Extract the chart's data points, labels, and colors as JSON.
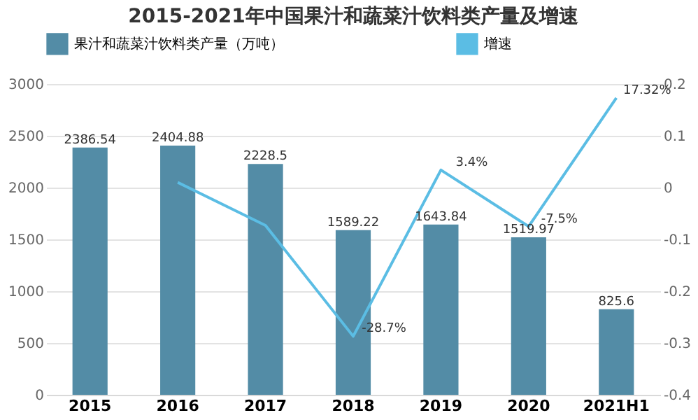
{
  "chart_data": {
    "type": "bar",
    "title": "2015-2021年中国果汁和蔬菜汁饮料类产量及增速",
    "categories": [
      "2015",
      "2016",
      "2017",
      "2018",
      "2019",
      "2020",
      "2021H1"
    ],
    "series": [
      {
        "name": "果汁和蔬菜汁饮料类产量（万吨）",
        "color": "#538ca6",
        "values": [
          2386.54,
          2404.88,
          2228.5,
          1589.22,
          1643.84,
          1519.97,
          825.6
        ],
        "value_labels": [
          "2386.54",
          "2404.88",
          "2228.5",
          "1589.22",
          "1643.84",
          "1519.97",
          "825.6"
        ]
      },
      {
        "name": "增速",
        "type": "line",
        "axis": "y2",
        "color": "#5bbde4",
        "values": [
          null,
          0.01,
          -0.073,
          -0.287,
          0.034,
          -0.075,
          0.1732
        ],
        "value_labels": [
          null,
          null,
          null,
          "-28.7%",
          "3.4%",
          "-7.5%",
          "17.32%"
        ]
      }
    ],
    "ylim": [
      0,
      3000
    ],
    "yticks": [
      0,
      500,
      1000,
      1500,
      2000,
      2500,
      3000
    ],
    "y2lim": [
      -0.4,
      0.2
    ],
    "y2ticks": [
      -0.4,
      -0.3,
      -0.2,
      -0.1,
      0,
      0.1,
      0.2
    ],
    "grid": "y",
    "legend": "top"
  }
}
